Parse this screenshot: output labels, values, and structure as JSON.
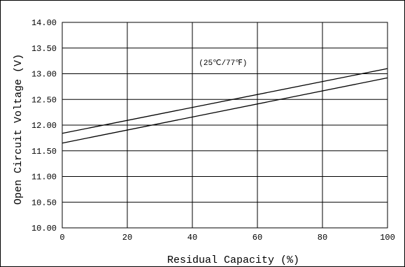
{
  "chart_data": {
    "type": "line",
    "xlabel": "Residual Capacity (%)",
    "ylabel": "Open Circuit Voltage (V)",
    "xlim": [
      0,
      100
    ],
    "ylim": [
      10.0,
      14.0
    ],
    "x_ticks": [
      "0",
      "20",
      "40",
      "60",
      "80",
      "100"
    ],
    "y_ticks": [
      "10.00",
      "10.50",
      "11.00",
      "11.50",
      "12.00",
      "12.50",
      "13.00",
      "13.50",
      "14.00"
    ],
    "grid": true,
    "annotation": "(25℃/77℉)",
    "series": [
      {
        "x": [
          0,
          100
        ],
        "values": [
          11.84,
          13.1
        ]
      },
      {
        "x": [
          0,
          100
        ],
        "values": [
          11.65,
          12.92
        ]
      }
    ]
  }
}
